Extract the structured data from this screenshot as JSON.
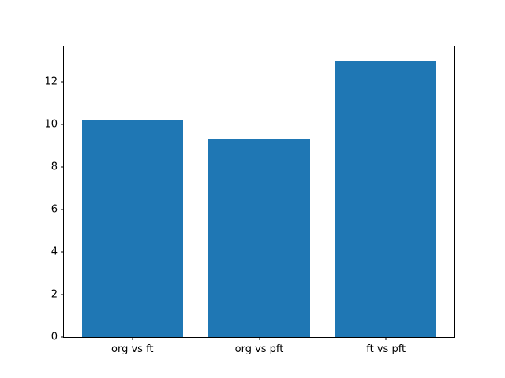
{
  "chart_data": {
    "type": "bar",
    "categories": [
      "org vs ft",
      "org vs pft",
      "ft vs pft"
    ],
    "values": [
      10.2,
      9.3,
      13.0
    ],
    "title": "",
    "xlabel": "",
    "ylabel": "",
    "ylim": [
      0,
      13.65
    ],
    "yticks": [
      0,
      2,
      4,
      6,
      8,
      10,
      12
    ],
    "bar_color": "#1f77b4",
    "background_color": "#ffffff",
    "axis_color": "#000000",
    "grid": false,
    "legend": null,
    "bar_width_fraction": 0.8
  }
}
